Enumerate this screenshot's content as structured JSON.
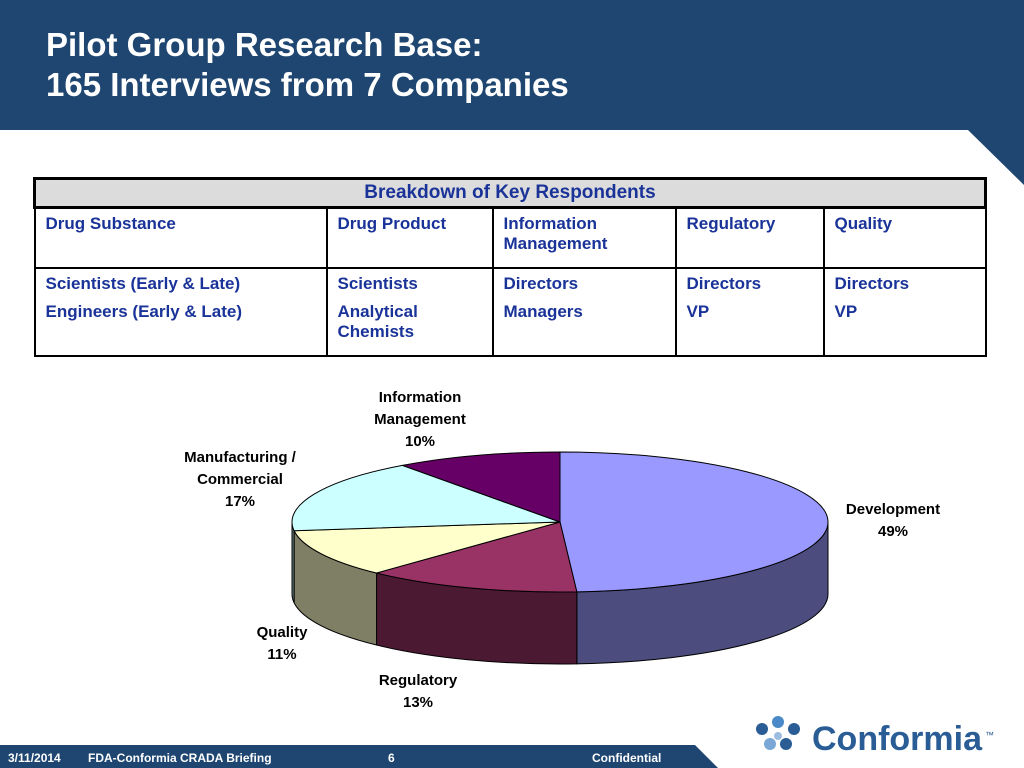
{
  "header": {
    "title_line1": "Pilot Group Research Base:",
    "title_line2": "165 Interviews from 7 Companies"
  },
  "table": {
    "title": "Breakdown of Key Respondents",
    "columns": [
      "Drug Substance",
      "Drug Product",
      "Information Management",
      "Regulatory",
      "Quality"
    ],
    "roles": [
      [
        "Scientists (Early & Late)",
        "Engineers (Early & Late)"
      ],
      [
        "Scientists",
        "Analytical Chemists"
      ],
      [
        "Directors",
        "Managers"
      ],
      [
        "Directors",
        "VP"
      ],
      [
        "Directors",
        "VP"
      ]
    ]
  },
  "chart_data": {
    "type": "pie",
    "categories": [
      "Development",
      "Regulatory",
      "Quality",
      "Manufacturing / Commercial",
      "Information Management"
    ],
    "values": [
      49,
      13,
      11,
      17,
      10
    ],
    "value_labels": [
      "49%",
      "13%",
      "11%",
      "17%",
      "10%"
    ],
    "colors": [
      "#9999ff",
      "#993366",
      "#ffffcc",
      "#ccffff",
      "#660066"
    ]
  },
  "footer": {
    "date": "3/11/2014",
    "briefing": "FDA-Conformia CRADA Briefing",
    "page": "6",
    "confidential": "Confidential",
    "logo": "Conformia",
    "trademark": "™"
  }
}
